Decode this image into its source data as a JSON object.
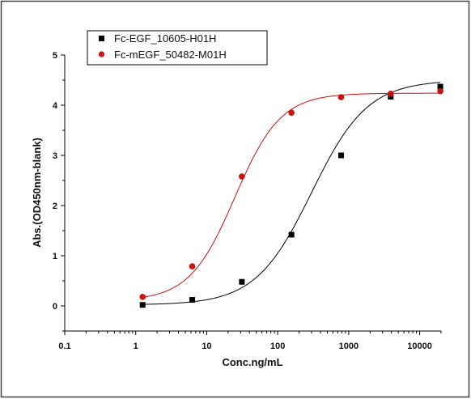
{
  "chart_data": {
    "type": "scatter",
    "title": "",
    "xlabel": "Conc.ng/mL",
    "ylabel": "Abs.(OD450nm-blank)",
    "xscale": "log",
    "xlim": [
      0.1,
      20000
    ],
    "ylim": [
      -0.5,
      5
    ],
    "xticks": [
      0.1,
      1,
      10,
      100,
      1000,
      10000
    ],
    "xtick_labels": [
      "0.1",
      "1",
      "10",
      "100",
      "1000",
      "10000"
    ],
    "yticks": [
      0,
      1,
      2,
      3,
      4,
      5
    ],
    "ytick_labels": [
      "0",
      "1",
      "2",
      "3",
      "4",
      "5"
    ],
    "grid": false,
    "legend_position": "top-left",
    "series": [
      {
        "name": "Fc-EGF_10605-H01H",
        "color": "#000000",
        "marker": "square",
        "x": [
          1.25,
          6.25,
          31.25,
          156.25,
          781.25,
          3906.25,
          19531.25
        ],
        "y": [
          0.02,
          0.12,
          0.48,
          1.42,
          3.0,
          4.17,
          4.37
        ],
        "fit": {
          "bottom": 0.02,
          "top": 4.5,
          "ec50": 300,
          "hill": 1.1
        }
      },
      {
        "name": "Fc-mEGF_50482-M01H",
        "color": "#cc1111",
        "marker": "circle",
        "x": [
          1.25,
          6.25,
          31.25,
          156.25,
          781.25,
          3906.25,
          19531.25
        ],
        "y": [
          0.18,
          0.79,
          2.58,
          3.85,
          4.16,
          4.23,
          4.28
        ],
        "fit": {
          "bottom": 0.1,
          "top": 4.24,
          "ec50": 25,
          "hill": 1.35
        }
      }
    ]
  }
}
